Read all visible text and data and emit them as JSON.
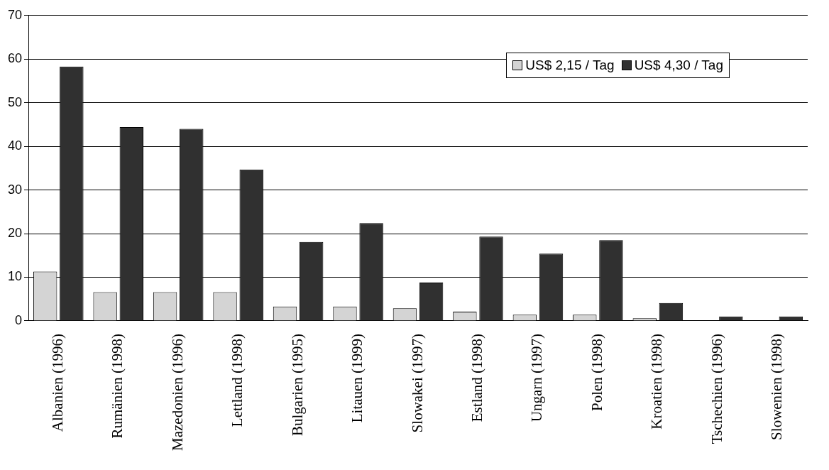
{
  "chart_data": {
    "type": "bar",
    "categories": [
      "Albanien (1996)",
      "Rumänien (1998)",
      "Mazedonien (1996)",
      "Lettland (1998)",
      "Bulgarien (1995)",
      "Litauen (1999)",
      "Slowakei (1997)",
      "Estland (1998)",
      "Ungarn (1997)",
      "Polen (1998)",
      "Kroatien (1998)",
      "Tschechien (1996)",
      "Slowenien (1998)"
    ],
    "series": [
      {
        "name": "US$ 2,15 / Tag",
        "color": "#d4d4d4",
        "values": [
          11.3,
          6.6,
          6.6,
          6.6,
          3.3,
          3.3,
          2.9,
          2.1,
          1.4,
          1.4,
          0.6,
          0,
          0
        ]
      },
      {
        "name": "US$ 4,30 / Tag",
        "color": "#303030",
        "values": [
          58.3,
          44.4,
          44.0,
          34.7,
          18.1,
          22.4,
          8.8,
          19.3,
          15.4,
          18.5,
          4.1,
          1.0,
          1.0
        ]
      }
    ],
    "ylim": [
      0,
      70
    ],
    "yticks": [
      0,
      10,
      20,
      30,
      40,
      50,
      60,
      70
    ],
    "grid": "y",
    "legend": "top right"
  }
}
